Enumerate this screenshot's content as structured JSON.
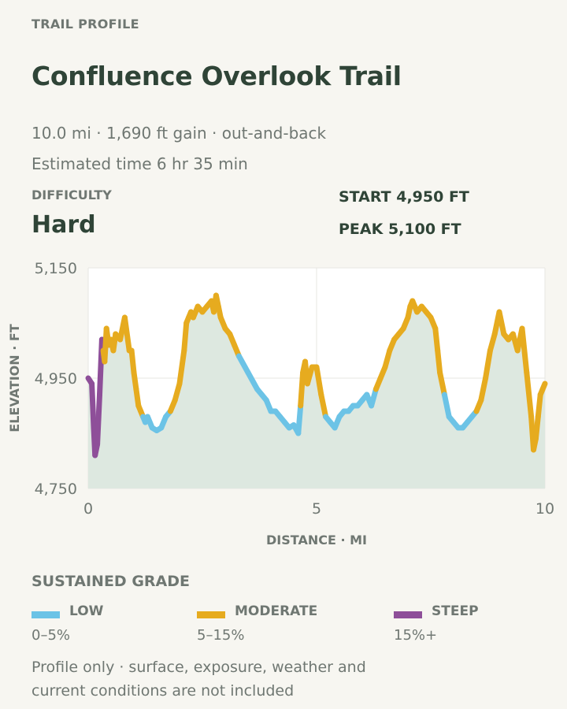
{
  "header": {
    "eyebrow": "TRAIL PROFILE",
    "title": "Confluence Overlook Trail",
    "meta_line": "10.0 mi · 1,690 ft gain · out-and-back",
    "time_line": "Estimated time 6 hr 35 min"
  },
  "difficulty": {
    "label": "DIFFICULTY",
    "value": "Hard"
  },
  "stats": {
    "start": "START 4,950 FT",
    "peak": "PEAK 5,100 FT"
  },
  "legend": {
    "title": "SUSTAINED GRADE",
    "items": [
      {
        "name": "LOW",
        "range": "0–5%",
        "color": "#6cc3e6"
      },
      {
        "name": "MODERATE",
        "range": "5–15%",
        "color": "#e6ab1f"
      },
      {
        "name": "STEEP",
        "range": "15%+",
        "color": "#8e4f99"
      }
    ]
  },
  "footnote": "Profile only · surface, exposure, weather and current conditions are not included",
  "chart_data": {
    "type": "line",
    "xlabel": "DISTANCE · MI",
    "ylabel": "ELEVATION · FT",
    "xlim": [
      0,
      10
    ],
    "ylim": [
      4750,
      5150
    ],
    "xticks": [
      {
        "value": 0,
        "label": "0"
      },
      {
        "value": 5,
        "label": "5"
      },
      {
        "value": 10,
        "label": "10"
      }
    ],
    "yticks": [
      {
        "value": 4750,
        "label": "4,750"
      },
      {
        "value": 4950,
        "label": "4,950"
      },
      {
        "value": 5150,
        "label": "5,150"
      }
    ],
    "grid": true,
    "fill_color": "#dde8e0",
    "series": [
      {
        "x": [
          0,
          0.08,
          0.12,
          0.15,
          0.2,
          0.25,
          0.3,
          0.33,
          0.36,
          0.4,
          0.45,
          0.5,
          0.55,
          0.6,
          0.7,
          0.8,
          0.9,
          0.95,
          1.0,
          1.05,
          1.1,
          1.15,
          1.2,
          1.25,
          1.3,
          1.4,
          1.5,
          1.6,
          1.7,
          1.8,
          1.9,
          2.0,
          2.1,
          2.15,
          2.2,
          2.25,
          2.3,
          2.4,
          2.5,
          2.6,
          2.7,
          2.75,
          2.8,
          2.85,
          2.9,
          3.0,
          3.1,
          3.2,
          3.3,
          3.5,
          3.7,
          3.8,
          3.9,
          4.0,
          4.1,
          4.2,
          4.3,
          4.4,
          4.5,
          4.6,
          4.65,
          4.7,
          4.75,
          4.8,
          4.9,
          5.0,
          5.1,
          5.2,
          5.3,
          5.4,
          5.5,
          5.6,
          5.7,
          5.8,
          5.9,
          6.0,
          6.1,
          6.2,
          6.3,
          6.4,
          6.5,
          6.6,
          6.7,
          6.8,
          6.9,
          7.0,
          7.05,
          7.1,
          7.15,
          7.2,
          7.3,
          7.4,
          7.5,
          7.6,
          7.65,
          7.7,
          7.8,
          7.9,
          8.0,
          8.1,
          8.2,
          8.3,
          8.4,
          8.5,
          8.6,
          8.7,
          8.8,
          8.9,
          9.0,
          9.1,
          9.2,
          9.3,
          9.4,
          9.5,
          9.6,
          9.7,
          9.75,
          9.8,
          9.85,
          9.9,
          9.95,
          10.0
        ],
        "y": [
          4950,
          4940,
          4860,
          4810,
          4830,
          4920,
          5020,
          5000,
          4980,
          5040,
          5010,
          5020,
          5000,
          5030,
          5020,
          5060,
          5000,
          5000,
          4960,
          4930,
          4900,
          4890,
          4880,
          4870,
          4880,
          4860,
          4855,
          4860,
          4880,
          4890,
          4910,
          4940,
          5000,
          5050,
          5060,
          5070,
          5060,
          5080,
          5070,
          5080,
          5090,
          5070,
          5100,
          5080,
          5060,
          5040,
          5030,
          5010,
          4990,
          4960,
          4930,
          4920,
          4910,
          4890,
          4890,
          4880,
          4870,
          4860,
          4865,
          4850,
          4900,
          4960,
          4980,
          4940,
          4970,
          4970,
          4920,
          4880,
          4870,
          4860,
          4880,
          4890,
          4890,
          4900,
          4900,
          4910,
          4920,
          4900,
          4930,
          4950,
          4970,
          5000,
          5020,
          5030,
          5040,
          5060,
          5080,
          5090,
          5080,
          5070,
          5080,
          5070,
          5060,
          5040,
          5000,
          4960,
          4920,
          4880,
          4870,
          4860,
          4860,
          4870,
          4880,
          4890,
          4910,
          4950,
          5000,
          5030,
          5070,
          5030,
          5020,
          5030,
          5000,
          5040,
          4960,
          4880,
          4820,
          4840,
          4880,
          4920,
          4930,
          4940
        ],
        "grade": [
          "steep",
          "steep",
          "steep",
          "steep",
          "steep",
          "steep",
          "steep",
          "moderate",
          "moderate",
          "moderate",
          "moderate",
          "moderate",
          "moderate",
          "moderate",
          "moderate",
          "moderate",
          "moderate",
          "moderate",
          "moderate",
          "moderate",
          "moderate",
          "moderate",
          "low",
          "low",
          "low",
          "low",
          "low",
          "low",
          "low",
          "moderate",
          "moderate",
          "moderate",
          "moderate",
          "moderate",
          "moderate",
          "moderate",
          "moderate",
          "moderate",
          "moderate",
          "moderate",
          "moderate",
          "moderate",
          "moderate",
          "moderate",
          "moderate",
          "moderate",
          "moderate",
          "moderate",
          "low",
          "low",
          "low",
          "low",
          "low",
          "low",
          "low",
          "low",
          "low",
          "low",
          "low",
          "low",
          "moderate",
          "moderate",
          "moderate",
          "moderate",
          "moderate",
          "moderate",
          "moderate",
          "low",
          "low",
          "low",
          "low",
          "low",
          "low",
          "low",
          "low",
          "low",
          "low",
          "low",
          "moderate",
          "moderate",
          "moderate",
          "moderate",
          "moderate",
          "moderate",
          "moderate",
          "moderate",
          "moderate",
          "moderate",
          "moderate",
          "moderate",
          "moderate",
          "moderate",
          "moderate",
          "moderate",
          "moderate",
          "moderate",
          "low",
          "low",
          "low",
          "low",
          "low",
          "low",
          "low",
          "moderate",
          "moderate",
          "moderate",
          "moderate",
          "moderate",
          "moderate",
          "moderate",
          "moderate",
          "moderate",
          "moderate",
          "moderate",
          "moderate",
          "moderate",
          "moderate",
          "moderate",
          "moderate",
          "moderate",
          "moderate"
        ]
      }
    ]
  }
}
